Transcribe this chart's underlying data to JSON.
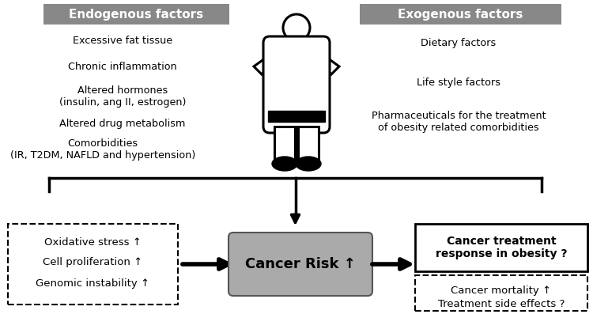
{
  "fig_width": 7.5,
  "fig_height": 3.97,
  "dpi": 100,
  "bg_color": "#ffffff",
  "header_bg": "#888888",
  "header_text_color": "#ffffff",
  "header_left_text": "Endogenous factors",
  "header_right_text": "Exogenous factors",
  "endo_items": [
    "Excessive fat tissue",
    "Chronic inflammation",
    "Altered hormones\n(insulin, ang II, estrogen)",
    "Altered drug metabolism",
    "Comorbidities\n(IR, T2DM, NAFLD and hypertension)"
  ],
  "exo_items": [
    "Dietary factors",
    "Life style factors",
    "Pharmaceuticals for the treatment\nof obesity related comorbidities"
  ],
  "left_box_items": [
    "Oxidative stress ↑",
    "Cell proliferation ↑",
    "Genomic instability ↑"
  ],
  "cancer_risk_text": "Cancer Risk ↑",
  "cancer_risk_bg": "#aaaaaa",
  "right_box_title": "Cancer treatment\nresponse in obesity ?",
  "right_box_sub": [
    "Cancer mortality ↑",
    "Treatment side effects ?"
  ]
}
